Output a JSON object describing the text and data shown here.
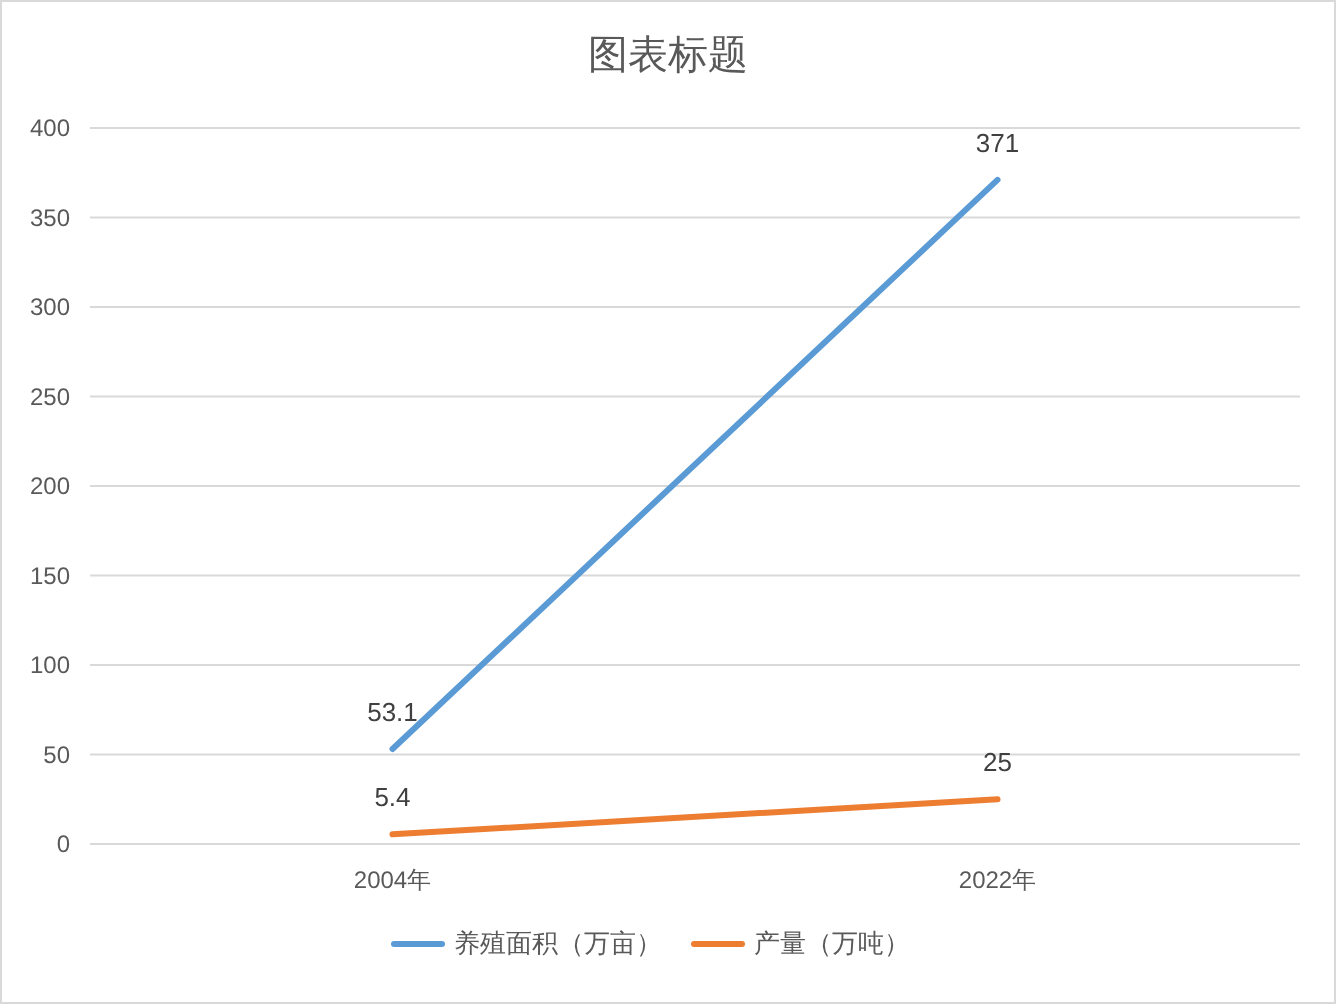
{
  "chart_data": {
    "type": "line",
    "title": "图表标题",
    "categories": [
      "2004年",
      "2022年"
    ],
    "series": [
      {
        "name": "养殖面积（万亩）",
        "color": "#5b9bd5",
        "values": [
          53.1,
          371
        ]
      },
      {
        "name": "产量（万吨）",
        "color": "#ed7d31",
        "values": [
          5.4,
          25
        ]
      }
    ],
    "ylim": [
      0,
      400
    ],
    "yticks": [
      0,
      50,
      100,
      150,
      200,
      250,
      300,
      350,
      400
    ],
    "grid": "y",
    "legend": "bottom",
    "data_labels": true,
    "marker": "none",
    "line_style": "solid"
  }
}
